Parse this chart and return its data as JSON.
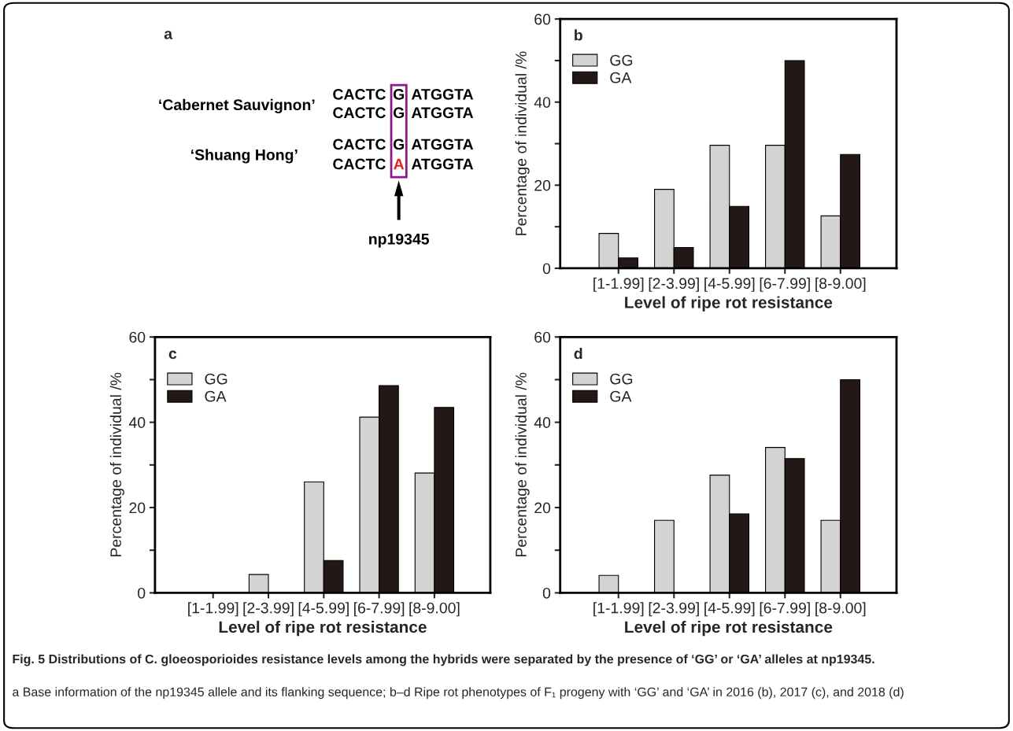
{
  "chart_data": [
    {
      "type": "other",
      "title": "a",
      "annotations": [
        "‘Cabernet Sauvignon’",
        "‘Shuang Hong’",
        "CACTC",
        "G",
        "ATGGTA",
        "CACTC",
        "G",
        "ATGGTA",
        "CACTC",
        "G",
        "ATGGTA",
        "CACTC",
        "A",
        "ATGGTA",
        "np19345"
      ],
      "colors": [
        "#000000",
        "#000000",
        "#000000",
        "#000000",
        "#000000",
        "#000000",
        "#000000",
        "#000000",
        "#000000",
        "#000000",
        "#000000",
        "#000000",
        "#e8201e",
        "#000000",
        "#000000"
      ]
    },
    {
      "type": "bar",
      "title": "b",
      "xlabel": "Level of ripe rot resistance",
      "ylabel": "Percentage of individual /%",
      "categories": [
        "[1-1.99]",
        "[2-3.99]",
        "[4-5.99]",
        "[6-7.99]",
        "[8-9.00]"
      ],
      "series": [
        {
          "name": "GG",
          "color": "#d3d3d3",
          "values": [
            8.4,
            19.0,
            29.6,
            29.6,
            12.6
          ]
        },
        {
          "name": "GA",
          "color": "#231815",
          "values": [
            2.5,
            5.0,
            14.9,
            50.0,
            27.4
          ]
        }
      ],
      "ylim": [
        0,
        60
      ],
      "yticks": [
        0,
        {
          "value": 10,
          "label": null
        },
        20,
        {
          "value": 30,
          "label": null
        },
        40,
        {
          "value": 50,
          "label": null
        },
        60
      ],
      "legend": "top left"
    },
    {
      "type": "bar",
      "title": "c",
      "xlabel": "Level of ripe rot resistance",
      "ylabel": "Percentage of individual /%",
      "categories": [
        "[1-1.99]",
        "[2-3.99]",
        "[4-5.99]",
        "[6-7.99]",
        "[8-9.00]"
      ],
      "series": [
        {
          "name": "GG",
          "color": "#d3d3d3",
          "values": [
            null,
            4.3,
            26.0,
            41.2,
            28.1
          ]
        },
        {
          "name": "GA",
          "color": "#231815",
          "values": [
            null,
            null,
            7.6,
            48.6,
            43.5
          ]
        }
      ],
      "ylim": [
        0,
        60
      ],
      "yticks": [
        0,
        {
          "value": 10,
          "label": null
        },
        20,
        {
          "value": 30,
          "label": null
        },
        40,
        {
          "value": 50,
          "label": null
        },
        60
      ],
      "legend": "top left"
    },
    {
      "type": "bar",
      "title": "d",
      "xlabel": "Level of ripe rot resistance",
      "ylabel": "Percentage of individual /%",
      "categories": [
        "[1-1.99]",
        "[2-3.99]",
        "[4-5.99]",
        "[6-7.99]",
        "[8-9.00]"
      ],
      "series": [
        {
          "name": "GG",
          "color": "#d3d3d3",
          "values": [
            4.1,
            17.0,
            27.6,
            34.1,
            17.0
          ]
        },
        {
          "name": "GA",
          "color": "#231815",
          "values": [
            null,
            null,
            18.5,
            31.5,
            50.0
          ]
        }
      ],
      "ylim": [
        0,
        60
      ],
      "yticks": [
        0,
        {
          "value": 10,
          "label": null
        },
        20,
        {
          "value": 30,
          "label": null
        },
        40,
        {
          "value": 50,
          "label": null
        },
        60
      ],
      "legend": "top left"
    },
    {
      "type": "other",
      "annotations": [
        "Fig. 5 Distributions of C. gloeosporioides resistance levels among the hybrids were separated by the presence of ‘GG’ or ‘GA’ alleles at np19345.",
        "a Base information of the np19345 allele and its flanking sequence; b–d Ripe rot phenotypes of F₁ progeny with ‘GG’ and ‘GA’ in 2016 (b), 2017 (c), and 2018 (d)"
      ]
    }
  ]
}
